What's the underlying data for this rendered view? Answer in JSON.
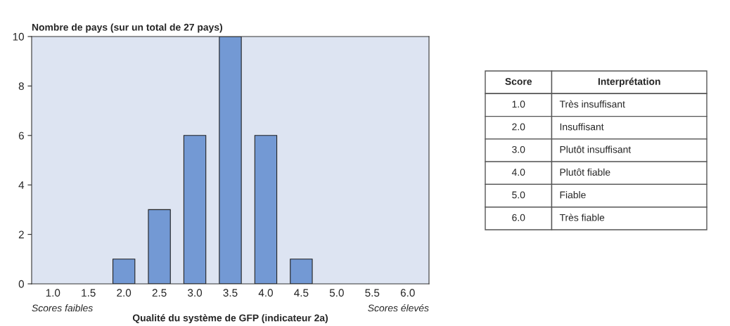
{
  "chart_data": {
    "type": "bar",
    "title": "Nombre de pays (sur un total de 27 pays)",
    "xlabel": "Qualité du système de GFP (indicateur 2a)",
    "categories": [
      "1.0",
      "1.5",
      "2.0",
      "2.5",
      "3.0",
      "3.5",
      "4.0",
      "4.5",
      "5.0",
      "5.5",
      "6.0"
    ],
    "values": [
      0,
      0,
      1,
      3,
      6,
      10,
      6,
      1,
      0,
      0,
      0
    ],
    "color": "#7399d4",
    "ylim": [
      0,
      10
    ],
    "yticks": [
      0,
      2,
      4,
      6,
      8,
      10
    ],
    "grid": false,
    "annotations": [
      "Scores faibles",
      "Scores élevés",
      "Score",
      "Interprétation",
      "1.0",
      "Très insuffisant",
      "2.0",
      "Insuffisant",
      "3.0",
      "Plutôt insuffisant",
      "4.0",
      "Plutôt fiable",
      "5.0",
      "Fiable",
      "6.0",
      "Très fiable"
    ]
  }
}
